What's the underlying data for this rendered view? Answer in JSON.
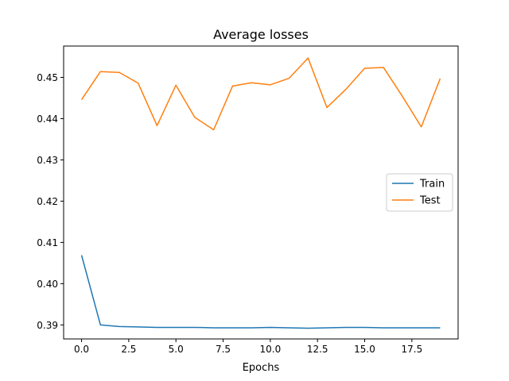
{
  "chart_data": {
    "type": "line",
    "title": "Average losses",
    "xlabel": "Epochs",
    "ylabel": "",
    "xlim": [
      -0.95,
      19.95
    ],
    "ylim": [
      0.3866,
      0.4576
    ],
    "xticks": [
      0,
      2.5,
      5,
      7.5,
      10,
      12.5,
      15,
      17.5
    ],
    "xtick_labels": [
      "0.0",
      "2.5",
      "5.0",
      "7.5",
      "10.0",
      "12.5",
      "15.0",
      "17.5"
    ],
    "yticks": [
      0.39,
      0.4,
      0.41,
      0.42,
      0.43,
      0.44,
      0.45
    ],
    "ytick_labels": [
      "0.39",
      "0.40",
      "0.41",
      "0.42",
      "0.43",
      "0.44",
      "0.45"
    ],
    "grid": false,
    "legend_position": "center-right",
    "x": [
      0,
      1,
      2,
      3,
      4,
      5,
      6,
      7,
      8,
      9,
      10,
      11,
      12,
      13,
      14,
      15,
      16,
      17,
      18,
      19
    ],
    "series": [
      {
        "name": "Train",
        "color": "#1f77b4",
        "values": [
          0.4069,
          0.39,
          0.3896,
          0.3895,
          0.3894,
          0.3894,
          0.3894,
          0.3893,
          0.3893,
          0.3893,
          0.3894,
          0.3893,
          0.3892,
          0.3893,
          0.3894,
          0.3894,
          0.3893,
          0.3893,
          0.3893,
          0.3893
        ]
      },
      {
        "name": "Test",
        "color": "#ff7f0e",
        "values": [
          0.4446,
          0.4514,
          0.4512,
          0.4486,
          0.4383,
          0.4481,
          0.4403,
          0.4373,
          0.4479,
          0.4487,
          0.4482,
          0.4498,
          0.4547,
          0.4427,
          0.4471,
          0.4522,
          0.4524,
          0.4454,
          0.438,
          0.4497
        ]
      }
    ]
  }
}
